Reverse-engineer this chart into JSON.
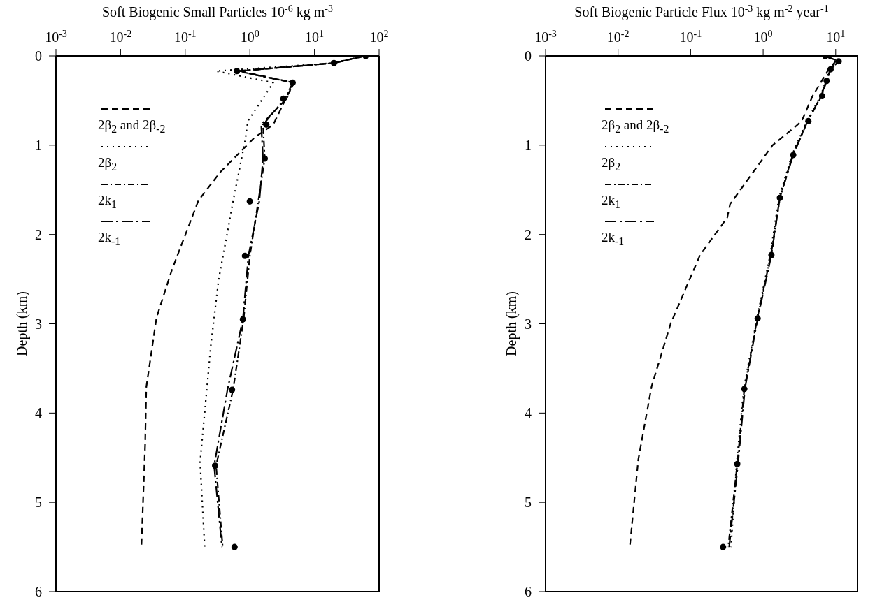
{
  "chart_data": [
    {
      "type": "line",
      "xlabel": "Soft Biogenic Small Particles 10$^{-6}$ kg m$^{-3}$",
      "ylabel": "Depth (km)",
      "log": "x",
      "xlim": [
        0.001,
        100
      ],
      "xticks": [
        {
          "value": 0.001,
          "label": "10$^{-3}$"
        },
        {
          "value": 0.01,
          "label": "10$^{-2}$"
        },
        {
          "value": 0.1,
          "label": "10$^{-1}$"
        },
        {
          "value": 1,
          "label": "10$^{0}$"
        },
        {
          "value": 10,
          "label": "10$^{1}$"
        },
        {
          "value": 100,
          "label": "10$^{2}$"
        }
      ],
      "ylim": [
        6,
        0
      ],
      "yticks": [
        0,
        1,
        2,
        3,
        4,
        5,
        6
      ],
      "legend": "top left",
      "series": [
        {
          "name": "2β$_{2}$ and 2β$_{-2}$",
          "line_style": "dashed",
          "color": "#000000",
          "x": [
            60,
            20,
            0.7,
            4.8,
            3.6,
            2.3,
            1.2,
            0.68,
            0.35,
            0.16,
            0.062,
            0.036,
            0.025,
            0.024,
            0.021
          ],
          "values": [
            0,
            0.08,
            0.17,
            0.3,
            0.48,
            0.77,
            0.91,
            1.09,
            1.3,
            1.62,
            2.4,
            2.93,
            3.71,
            4.35,
            5.5
          ]
        },
        {
          "name": "2β$_{2}$",
          "line_style": "dotted",
          "color": "#000000",
          "x": [
            60,
            20,
            0.3,
            2.3,
            0.93,
            0.85,
            0.56,
            0.33,
            0.25,
            0.17,
            0.2
          ],
          "values": [
            0,
            0.08,
            0.17,
            0.3,
            0.73,
            0.94,
            1.6,
            2.5,
            3.23,
            4.55,
            5.5
          ]
        },
        {
          "name": "2k$_{1}$",
          "line_style": "dashdot",
          "color": "#000000",
          "x": [
            60,
            20,
            0.65,
            4.6,
            3.5,
            1.6,
            1.7,
            1.35,
            1.0,
            0.8,
            0.55,
            0.3,
            0.38
          ],
          "values": [
            0,
            0.08,
            0.17,
            0.3,
            0.48,
            0.77,
            1.15,
            1.63,
            2.24,
            2.95,
            3.74,
            4.59,
            5.5
          ]
        },
        {
          "name": "2k$_{-1}$",
          "line_style": "longdashdot",
          "color": "#000000",
          "x": [
            62,
            20,
            0.63,
            4.8,
            3.7,
            1.5,
            1.6,
            1.4,
            0.95,
            0.78,
            0.45,
            0.28,
            0.37
          ],
          "values": [
            0,
            0.08,
            0.17,
            0.3,
            0.48,
            0.77,
            1.15,
            1.63,
            2.24,
            2.95,
            3.74,
            4.59,
            5.5
          ]
        },
        {
          "type": "scatter",
          "marker": "circle",
          "color": "#000000",
          "x": [
            62,
            20,
            0.63,
            4.6,
            3.3,
            1.8,
            1.7,
            1.0,
            0.84,
            0.78,
            0.53,
            0.29,
            0.58
          ],
          "values": [
            0,
            0.08,
            0.17,
            0.3,
            0.48,
            0.77,
            1.15,
            1.63,
            2.24,
            2.95,
            3.74,
            4.59,
            5.5
          ]
        }
      ]
    },
    {
      "type": "line",
      "xlabel": "Soft Biogenic Particle Flux 10$^{-3}$ kg m$^{-2}$ year$^{-1}$",
      "ylabel": "Depth (km)",
      "log": "x",
      "xlim": [
        0.001,
        20
      ],
      "xticks": [
        {
          "value": 0.001,
          "label": "10$^{-3}$"
        },
        {
          "value": 0.01,
          "label": "10$^{-2}$"
        },
        {
          "value": 0.1,
          "label": "10$^{-1}$"
        },
        {
          "value": 1,
          "label": "10$^{0}$"
        },
        {
          "value": 10,
          "label": "10$^{1}$"
        }
      ],
      "ylim": [
        6,
        0
      ],
      "yticks": [
        0,
        1,
        2,
        3,
        4,
        5,
        6
      ],
      "legend": "top left",
      "series": [
        {
          "name": "2β$_{2}$ and 2β$_{-2}$",
          "line_style": "dashed",
          "color": "#000000",
          "x": [
            7.2,
            10,
            8,
            6.2,
            4.8,
            3.4,
            2.8,
            1.35,
            0.35,
            0.32,
            0.135,
            0.053,
            0.029,
            0.019,
            0.0145
          ],
          "values": [
            0,
            0.06,
            0.15,
            0.3,
            0.45,
            0.73,
            0.79,
            1.0,
            1.66,
            1.81,
            2.23,
            3.0,
            3.7,
            4.52,
            5.5
          ]
        },
        {
          "name": "2β$_{2}$",
          "line_style": "dotted",
          "color": "#000000",
          "x": [
            7.5,
            10.5,
            8.3,
            7.3,
            6.2,
            4.0,
            2.5,
            1.65,
            1.25,
            0.82,
            0.54,
            0.43,
            0.36
          ],
          "values": [
            0,
            0.06,
            0.15,
            0.28,
            0.45,
            0.73,
            1.11,
            1.59,
            2.23,
            2.94,
            3.73,
            4.57,
            5.5
          ]
        },
        {
          "name": "2k$_{1}$",
          "line_style": "dashdot",
          "color": "#000000",
          "x": [
            7.2,
            11,
            8.5,
            7.5,
            6.4,
            4.1,
            2.55,
            1.7,
            1.28,
            0.83,
            0.55,
            0.44,
            0.33
          ],
          "values": [
            0,
            0.06,
            0.15,
            0.28,
            0.45,
            0.73,
            1.11,
            1.59,
            2.23,
            2.94,
            3.73,
            4.57,
            5.5
          ]
        },
        {
          "name": "2k$_{-1}$",
          "line_style": "longdashdot",
          "color": "#000000",
          "x": [
            7.2,
            11,
            8.5,
            7.4,
            6.3,
            4.1,
            2.6,
            1.7,
            1.3,
            0.84,
            0.56,
            0.45,
            0.34
          ],
          "values": [
            0,
            0.06,
            0.15,
            0.28,
            0.45,
            0.73,
            1.11,
            1.59,
            2.23,
            2.94,
            3.73,
            4.57,
            5.5
          ]
        },
        {
          "type": "scatter",
          "marker": "circle",
          "color": "#000000",
          "x": [
            7.2,
            11,
            8.5,
            7.5,
            6.5,
            4.2,
            2.6,
            1.7,
            1.3,
            0.84,
            0.55,
            0.44,
            0.28
          ],
          "values": [
            0,
            0.06,
            0.15,
            0.28,
            0.45,
            0.73,
            1.11,
            1.59,
            2.23,
            2.94,
            3.73,
            4.57,
            5.5
          ]
        }
      ]
    }
  ]
}
